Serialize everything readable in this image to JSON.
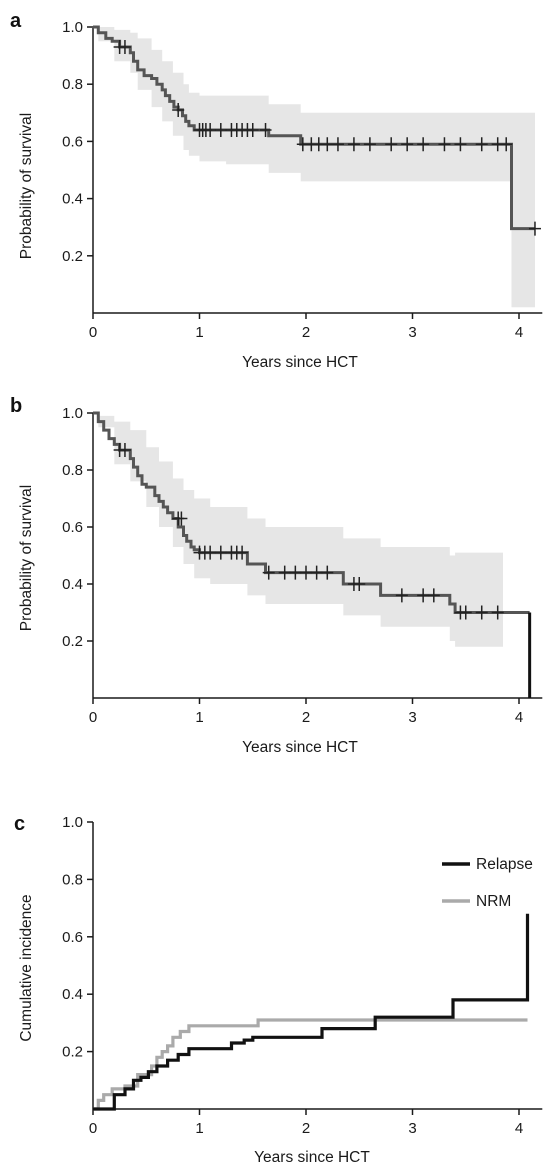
{
  "chart_data": [
    {
      "panel": "a",
      "type": "line",
      "title": "",
      "xlabel": "Years since HCT",
      "ylabel": "Probability of survival",
      "xlim": [
        0,
        4.2
      ],
      "ylim": [
        0,
        1.0
      ],
      "xticks": [
        "0",
        "1",
        "2",
        "3",
        "4"
      ],
      "yticks": [
        "0.2",
        "0.4",
        "0.6",
        "0.8",
        "1.0"
      ],
      "grid": false,
      "colors": {
        "line": "#555555",
        "band": "#e6e6e6"
      },
      "survival": {
        "x": [
          0,
          0.05,
          0.12,
          0.18,
          0.25,
          0.35,
          0.38,
          0.42,
          0.48,
          0.55,
          0.6,
          0.65,
          0.68,
          0.72,
          0.76,
          0.8,
          0.84,
          0.87,
          0.9,
          0.95,
          1.25,
          1.55,
          1.65,
          1.95,
          3.93,
          4.15
        ],
        "y": [
          1.0,
          0.98,
          0.96,
          0.95,
          0.93,
          0.91,
          0.88,
          0.85,
          0.83,
          0.82,
          0.8,
          0.78,
          0.76,
          0.74,
          0.72,
          0.71,
          0.69,
          0.67,
          0.655,
          0.64,
          0.64,
          0.64,
          0.62,
          0.59,
          0.295,
          0.295
        ]
      },
      "ci_upper": {
        "x": [
          0,
          0.05,
          0.2,
          0.35,
          0.42,
          0.55,
          0.65,
          0.75,
          0.85,
          0.9,
          1.0,
          1.25,
          1.65,
          1.95,
          3.93,
          4.15
        ],
        "y": [
          1.0,
          1.0,
          0.99,
          0.98,
          0.96,
          0.92,
          0.88,
          0.84,
          0.8,
          0.77,
          0.76,
          0.76,
          0.73,
          0.7,
          0.7,
          0.7
        ]
      },
      "ci_lower": {
        "x": [
          0,
          0.05,
          0.2,
          0.35,
          0.42,
          0.55,
          0.65,
          0.75,
          0.85,
          0.9,
          1.0,
          1.25,
          1.65,
          1.95,
          3.93,
          4.15
        ],
        "y": [
          1.0,
          0.95,
          0.88,
          0.84,
          0.78,
          0.72,
          0.67,
          0.62,
          0.57,
          0.55,
          0.53,
          0.52,
          0.49,
          0.46,
          0.02,
          0.02
        ]
      },
      "censor_marks": {
        "x": [
          0.25,
          0.3,
          0.8,
          1.0,
          1.03,
          1.06,
          1.1,
          1.2,
          1.3,
          1.35,
          1.4,
          1.45,
          1.5,
          1.62,
          1.97,
          2.05,
          2.12,
          2.2,
          2.3,
          2.45,
          2.6,
          2.8,
          2.95,
          3.1,
          3.3,
          3.45,
          3.65,
          3.8,
          3.88,
          4.15
        ],
        "y": [
          0.93,
          0.93,
          0.71,
          0.64,
          0.64,
          0.64,
          0.64,
          0.64,
          0.64,
          0.64,
          0.64,
          0.64,
          0.64,
          0.64,
          0.59,
          0.59,
          0.59,
          0.59,
          0.59,
          0.59,
          0.59,
          0.59,
          0.59,
          0.59,
          0.59,
          0.59,
          0.59,
          0.59,
          0.59,
          0.295
        ]
      }
    },
    {
      "panel": "b",
      "type": "line",
      "title": "",
      "xlabel": "Years since HCT",
      "ylabel": "Probability of survival",
      "xlim": [
        0,
        4.2
      ],
      "ylim": [
        0,
        1.0
      ],
      "xticks": [
        "0",
        "1",
        "2",
        "3",
        "4"
      ],
      "yticks": [
        "0.2",
        "0.4",
        "0.6",
        "0.8",
        "1.0"
      ],
      "grid": false,
      "colors": {
        "line": "#555555",
        "tail": "#111111",
        "band": "#e6e6e6"
      },
      "survival": {
        "x": [
          0,
          0.05,
          0.1,
          0.15,
          0.2,
          0.25,
          0.35,
          0.38,
          0.42,
          0.46,
          0.5,
          0.58,
          0.62,
          0.66,
          0.7,
          0.75,
          0.8,
          0.85,
          0.88,
          0.92,
          0.95,
          1.0,
          1.45,
          1.62,
          2.35,
          2.7,
          3.35,
          3.4,
          3.85,
          4.1
        ],
        "y": [
          1.0,
          0.97,
          0.94,
          0.91,
          0.89,
          0.87,
          0.84,
          0.81,
          0.78,
          0.75,
          0.74,
          0.71,
          0.69,
          0.67,
          0.65,
          0.63,
          0.6,
          0.57,
          0.55,
          0.53,
          0.52,
          0.51,
          0.47,
          0.44,
          0.4,
          0.36,
          0.33,
          0.3,
          0.3,
          0.3
        ]
      },
      "drop": {
        "x": 4.1,
        "y_from": 0.3,
        "y_to": 0.0
      },
      "ci_upper": {
        "x": [
          0,
          0.05,
          0.2,
          0.35,
          0.5,
          0.62,
          0.75,
          0.85,
          0.95,
          1.1,
          1.45,
          1.62,
          2.35,
          2.7,
          3.35,
          3.4,
          3.85
        ],
        "y": [
          1.0,
          0.99,
          0.97,
          0.94,
          0.88,
          0.83,
          0.77,
          0.73,
          0.7,
          0.67,
          0.63,
          0.6,
          0.56,
          0.53,
          0.5,
          0.51,
          0.51
        ]
      },
      "ci_lower": {
        "x": [
          0,
          0.05,
          0.2,
          0.35,
          0.5,
          0.62,
          0.75,
          0.85,
          0.95,
          1.1,
          1.45,
          1.62,
          2.35,
          2.7,
          3.35,
          3.4,
          3.85
        ],
        "y": [
          1.0,
          0.95,
          0.82,
          0.76,
          0.67,
          0.6,
          0.53,
          0.47,
          0.42,
          0.4,
          0.36,
          0.33,
          0.29,
          0.25,
          0.2,
          0.18,
          0.18
        ]
      },
      "censor_marks": {
        "x": [
          0.25,
          0.3,
          0.8,
          0.83,
          1.0,
          1.05,
          1.1,
          1.2,
          1.3,
          1.35,
          1.4,
          1.65,
          1.8,
          1.9,
          2.0,
          2.1,
          2.2,
          2.45,
          2.5,
          2.9,
          3.1,
          3.2,
          3.45,
          3.5,
          3.65,
          3.8
        ],
        "y": [
          0.87,
          0.87,
          0.63,
          0.63,
          0.51,
          0.51,
          0.51,
          0.51,
          0.51,
          0.51,
          0.51,
          0.44,
          0.44,
          0.44,
          0.44,
          0.44,
          0.44,
          0.4,
          0.4,
          0.36,
          0.36,
          0.36,
          0.3,
          0.3,
          0.3,
          0.3
        ]
      }
    },
    {
      "panel": "c",
      "type": "line",
      "title": "",
      "xlabel": "Years since HCT",
      "ylabel": "Cumulative incidence",
      "xlim": [
        0,
        4.2
      ],
      "ylim": [
        0,
        1.0
      ],
      "xticks": [
        "0",
        "1",
        "2",
        "3",
        "4"
      ],
      "yticks": [
        "0.2",
        "0.4",
        "0.6",
        "0.8",
        "1.0"
      ],
      "grid": false,
      "legend": "top-right",
      "series": [
        {
          "name": "Relapse",
          "color": "#111111",
          "x": [
            0,
            0.2,
            0.3,
            0.38,
            0.45,
            0.52,
            0.6,
            0.7,
            0.8,
            0.9,
            1.3,
            1.42,
            1.5,
            2.15,
            2.65,
            3.38,
            4.05,
            4.08
          ],
          "y": [
            0,
            0.05,
            0.07,
            0.1,
            0.11,
            0.13,
            0.15,
            0.17,
            0.19,
            0.21,
            0.23,
            0.24,
            0.25,
            0.28,
            0.32,
            0.38,
            0.38,
            0.68
          ]
        },
        {
          "name": "NRM",
          "color": "#aaaaaa",
          "x": [
            0,
            0.05,
            0.1,
            0.18,
            0.3,
            0.42,
            0.55,
            0.6,
            0.65,
            0.7,
            0.75,
            0.82,
            0.9,
            1.55,
            2.62,
            4.08
          ],
          "y": [
            0,
            0.03,
            0.05,
            0.07,
            0.08,
            0.12,
            0.15,
            0.18,
            0.2,
            0.22,
            0.25,
            0.27,
            0.29,
            0.31,
            0.31,
            0.31
          ]
        }
      ]
    }
  ]
}
